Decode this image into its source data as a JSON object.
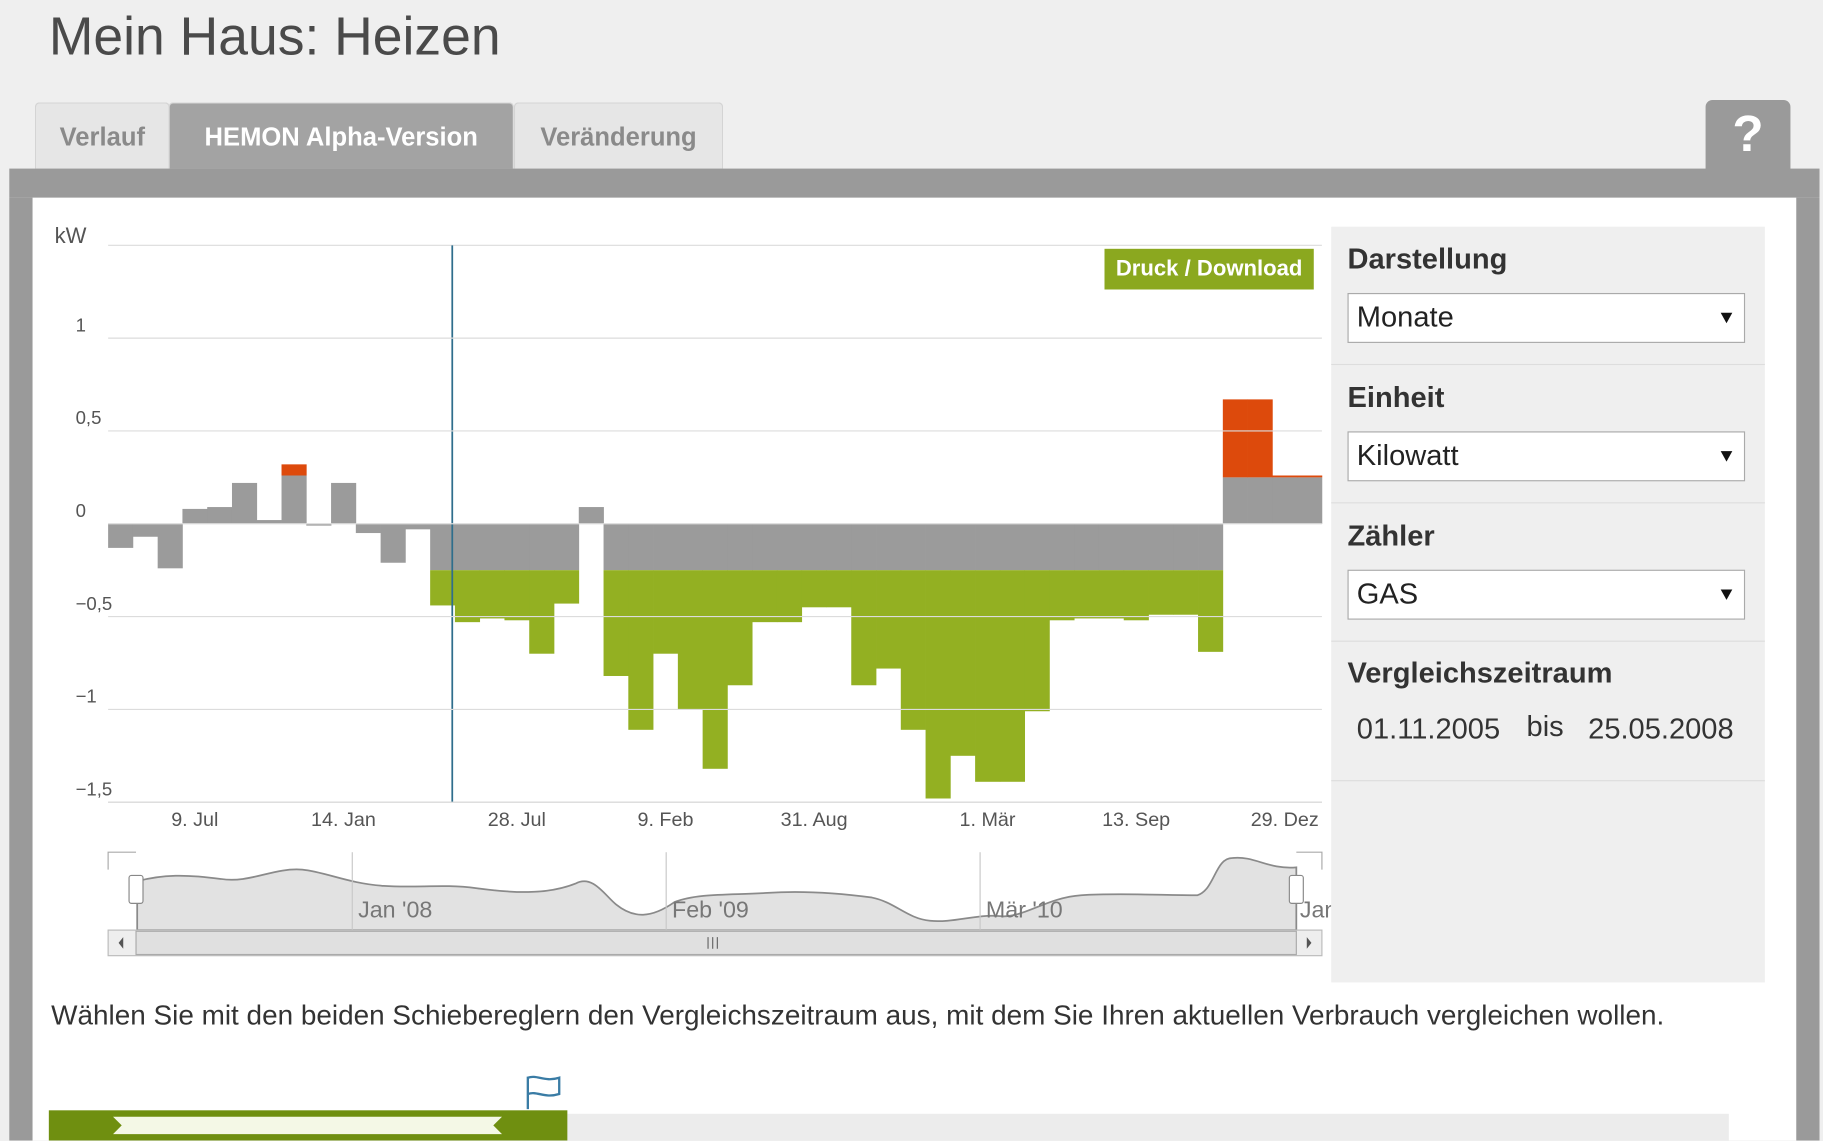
{
  "header": {
    "title": "Mein Haus: Heizen"
  },
  "tabs": [
    "Verlauf",
    "HEMON Alpha-Version",
    "Veränderung"
  ],
  "help": "?",
  "chart_data": {
    "type": "bar",
    "stacked": true,
    "y_axis_label": "kW",
    "button": "Druck / Download",
    "categories": [
      null,
      null,
      null,
      "9. Jul",
      null,
      null,
      null,
      null,
      null,
      "14. Jan",
      null,
      null,
      null,
      null,
      null,
      null,
      "28. Jul",
      null,
      null,
      null,
      null,
      null,
      "9. Feb",
      null,
      null,
      null,
      null,
      null,
      "31. Aug",
      null,
      null,
      null,
      null,
      null,
      null,
      "1. Mär",
      null,
      null,
      null,
      null,
      null,
      "13. Sep",
      null,
      null,
      null,
      null,
      null,
      "29. Dez",
      null
    ],
    "series": [
      {
        "color": "#9b9b9b",
        "values": [
          -0.13,
          -0.07,
          -0.24,
          0.08,
          0.09,
          0.22,
          0.02,
          0.26,
          -0.01,
          0.22,
          -0.05,
          -0.21,
          -0.03,
          -0.25,
          -0.25,
          -0.25,
          -0.25,
          -0.25,
          -0.25,
          0.09,
          -0.25,
          -0.25,
          -0.25,
          -0.25,
          -0.25,
          -0.25,
          -0.25,
          -0.25,
          -0.25,
          -0.25,
          -0.25,
          -0.25,
          -0.25,
          -0.25,
          -0.25,
          -0.25,
          -0.25,
          -0.25,
          -0.25,
          -0.25,
          -0.25,
          -0.25,
          -0.25,
          -0.25,
          -0.25,
          0.25,
          0.25,
          0.25,
          0.25
        ]
      },
      {
        "color": "#93b022",
        "positive_color": "#dd4a0c",
        "values": [
          0,
          0,
          0,
          0,
          0,
          0,
          0,
          0.06,
          0,
          0,
          0,
          0,
          0,
          -0.19,
          -0.28,
          -0.26,
          -0.27,
          -0.45,
          -0.18,
          0,
          -0.57,
          -0.86,
          -0.45,
          -0.75,
          -1.07,
          -0.62,
          -0.28,
          -0.28,
          -0.2,
          -0.2,
          -0.62,
          -0.53,
          -0.86,
          -1.23,
          -1.0,
          -1.14,
          -1.14,
          -0.76,
          -0.27,
          -0.26,
          -0.26,
          -0.27,
          -0.24,
          -0.24,
          -0.44,
          0.42,
          0.42,
          0.01,
          0.01
        ]
      }
    ],
    "ylim": [
      -1.5,
      1.5
    ],
    "yticks": [
      {
        "value": -1.5,
        "label": "−1,5"
      },
      {
        "value": -1,
        "label": "−1"
      },
      {
        "value": -0.5,
        "label": "−0,5"
      },
      0,
      {
        "value": 0.5,
        "label": "0,5"
      },
      1
    ],
    "grid": true
  },
  "navigator": {
    "labels": [
      "Jan '08",
      "Feb '09",
      "Mär '10",
      "Jan"
    ]
  },
  "sidebar": {
    "sections": [
      {
        "heading": "Darstellung",
        "value": "Monate"
      },
      {
        "heading": "Einheit",
        "value": "Kilowatt"
      },
      {
        "heading": "Zähler",
        "value": "GAS"
      }
    ],
    "period": {
      "heading": "Vergleichszeitraum",
      "from": "01.11.2005",
      "separator": "bis",
      "to": "25.05.2008"
    }
  },
  "instructions": "Wählen Sie mit den beiden Schiebereglern den Vergleichszeitraum aus, mit dem Sie Ihren aktuellen Verbrauch vergleichen wollen."
}
